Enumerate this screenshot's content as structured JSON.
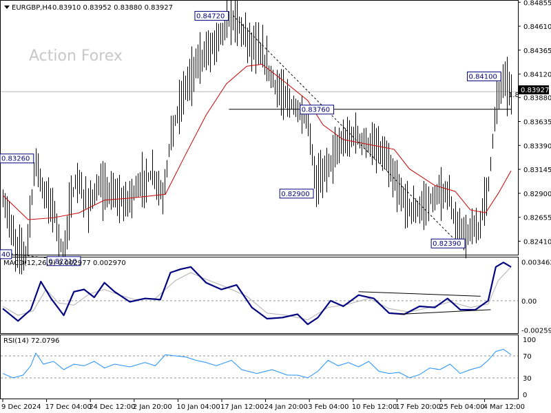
{
  "header": {
    "symbol": "EURGBP,H4",
    "ohlc": "0.83910 0.83952 0.83880 0.83927",
    "watermark": "Action Forex"
  },
  "colors": {
    "candle": "#000000",
    "ma": "#cc0000",
    "macd_main": "#000080",
    "macd_signal": "#b0b0b0",
    "rsi": "#1e90ff",
    "price_box": "#000000"
  },
  "chart_data": [
    {
      "type": "candlestick",
      "pane": "price",
      "ylim": [
        0.823,
        0.8485
      ],
      "y_ticks": [
        "0.84855",
        "0.84610",
        "0.84365",
        "0.84120",
        "0.83880",
        "0.83635",
        "0.83390",
        "0.83145",
        "0.82900",
        "0.82655",
        "0.82410"
      ],
      "current_price": "0.83927",
      "current_price_partial": "1.8",
      "x_ticks": [
        "9 Dec 2024",
        "17 Dec 04:00",
        "24 Dec 12:00",
        "2 Jan 20:00",
        "10 Jan 04:00",
        "17 Jan 12:00",
        "24 Jan 20:00",
        "3 Feb 04:00",
        "10 Feb 12:00",
        "17 Feb 20:00",
        "25 Feb 04:00",
        "4 Mar 12:00"
      ],
      "annotations": [
        "0.84720",
        "0.83260",
        "0.82210",
        "0.82900",
        "0.83760",
        "0.82390",
        "0.84100",
        "40"
      ],
      "horizontal_lines": [
        0.8394,
        0.8376
      ],
      "trendlines": [
        {
          "from": {
            "x": 0.0,
            "y": 0.8229
          },
          "to": {
            "x": 0.135,
            "y": 0.8221
          }
        },
        {
          "from": {
            "x": 0.453,
            "y": 0.8472
          },
          "to": {
            "x": 0.896,
            "y": 0.8239
          }
        }
      ],
      "price_path": [
        {
          "x": 0.0,
          "y": 0.8282
        },
        {
          "x": 0.01,
          "y": 0.8268
        },
        {
          "x": 0.025,
          "y": 0.8235
        },
        {
          "x": 0.045,
          "y": 0.8228
        },
        {
          "x": 0.065,
          "y": 0.8326
        },
        {
          "x": 0.08,
          "y": 0.829
        },
        {
          "x": 0.1,
          "y": 0.8275
        },
        {
          "x": 0.118,
          "y": 0.8225
        },
        {
          "x": 0.13,
          "y": 0.827
        },
        {
          "x": 0.145,
          "y": 0.8305
        },
        {
          "x": 0.165,
          "y": 0.828
        },
        {
          "x": 0.19,
          "y": 0.8295
        },
        {
          "x": 0.215,
          "y": 0.829
        },
        {
          "x": 0.24,
          "y": 0.828
        },
        {
          "x": 0.27,
          "y": 0.83
        },
        {
          "x": 0.295,
          "y": 0.831
        },
        {
          "x": 0.315,
          "y": 0.8285
        },
        {
          "x": 0.33,
          "y": 0.835
        },
        {
          "x": 0.36,
          "y": 0.84
        },
        {
          "x": 0.385,
          "y": 0.8425
        },
        {
          "x": 0.41,
          "y": 0.844
        },
        {
          "x": 0.435,
          "y": 0.846
        },
        {
          "x": 0.455,
          "y": 0.847
        },
        {
          "x": 0.48,
          "y": 0.845
        },
        {
          "x": 0.51,
          "y": 0.843
        },
        {
          "x": 0.54,
          "y": 0.8395
        },
        {
          "x": 0.57,
          "y": 0.838
        },
        {
          "x": 0.6,
          "y": 0.8362
        },
        {
          "x": 0.615,
          "y": 0.83
        },
        {
          "x": 0.64,
          "y": 0.832
        },
        {
          "x": 0.665,
          "y": 0.834
        },
        {
          "x": 0.69,
          "y": 0.835
        },
        {
          "x": 0.72,
          "y": 0.834
        },
        {
          "x": 0.75,
          "y": 0.833
        },
        {
          "x": 0.78,
          "y": 0.829
        },
        {
          "x": 0.81,
          "y": 0.827
        },
        {
          "x": 0.845,
          "y": 0.8285
        },
        {
          "x": 0.875,
          "y": 0.829
        },
        {
          "x": 0.89,
          "y": 0.8258
        },
        {
          "x": 0.91,
          "y": 0.8247
        },
        {
          "x": 0.935,
          "y": 0.8255
        },
        {
          "x": 0.955,
          "y": 0.83
        },
        {
          "x": 0.97,
          "y": 0.838
        },
        {
          "x": 0.985,
          "y": 0.841
        },
        {
          "x": 1.0,
          "y": 0.8392
        }
      ],
      "ma_path": [
        {
          "x": 0.0,
          "y": 0.8288
        },
        {
          "x": 0.05,
          "y": 0.8263
        },
        {
          "x": 0.1,
          "y": 0.8265
        },
        {
          "x": 0.15,
          "y": 0.827
        },
        {
          "x": 0.2,
          "y": 0.8283
        },
        {
          "x": 0.25,
          "y": 0.8285
        },
        {
          "x": 0.32,
          "y": 0.8289
        },
        {
          "x": 0.36,
          "y": 0.833
        },
        {
          "x": 0.4,
          "y": 0.837
        },
        {
          "x": 0.44,
          "y": 0.8402
        },
        {
          "x": 0.48,
          "y": 0.842
        },
        {
          "x": 0.51,
          "y": 0.8422
        },
        {
          "x": 0.55,
          "y": 0.8406
        },
        {
          "x": 0.6,
          "y": 0.8385
        },
        {
          "x": 0.63,
          "y": 0.836
        },
        {
          "x": 0.67,
          "y": 0.8345
        },
        {
          "x": 0.72,
          "y": 0.834
        },
        {
          "x": 0.77,
          "y": 0.8335
        },
        {
          "x": 0.8,
          "y": 0.8315
        },
        {
          "x": 0.85,
          "y": 0.8298
        },
        {
          "x": 0.89,
          "y": 0.8292
        },
        {
          "x": 0.92,
          "y": 0.8273
        },
        {
          "x": 0.95,
          "y": 0.827
        },
        {
          "x": 0.975,
          "y": 0.829
        },
        {
          "x": 1.0,
          "y": 0.8313
        }
      ]
    },
    {
      "type": "line",
      "pane": "macd",
      "title": "MACD(12,26,9) 0.002977 0.002970",
      "ylim": [
        -0.0027,
        0.0036
      ],
      "y_ticks": [
        "0.003462",
        "0.00",
        "-0.002593"
      ],
      "series": [
        {
          "name": "main",
          "points": [
            {
              "x": 0.0,
              "y": -0.0007
            },
            {
              "x": 0.03,
              "y": -0.0018
            },
            {
              "x": 0.055,
              "y": -0.0008
            },
            {
              "x": 0.075,
              "y": 0.0017
            },
            {
              "x": 0.095,
              "y": 0.0002
            },
            {
              "x": 0.12,
              "y": -0.0013
            },
            {
              "x": 0.14,
              "y": 0.0008
            },
            {
              "x": 0.16,
              "y": 0.001
            },
            {
              "x": 0.18,
              "y": 0.0003
            },
            {
              "x": 0.2,
              "y": 0.0016
            },
            {
              "x": 0.22,
              "y": 0.0008
            },
            {
              "x": 0.25,
              "y": -0.0001
            },
            {
              "x": 0.28,
              "y": 0.0002
            },
            {
              "x": 0.31,
              "y": 0.0001
            },
            {
              "x": 0.33,
              "y": 0.0025
            },
            {
              "x": 0.35,
              "y": 0.0028
            },
            {
              "x": 0.37,
              "y": 0.003
            },
            {
              "x": 0.4,
              "y": 0.0016
            },
            {
              "x": 0.43,
              "y": 0.001
            },
            {
              "x": 0.46,
              "y": 0.0014
            },
            {
              "x": 0.49,
              "y": -0.0006
            },
            {
              "x": 0.52,
              "y": -0.0016
            },
            {
              "x": 0.55,
              "y": -0.0015
            },
            {
              "x": 0.58,
              "y": -0.0012
            },
            {
              "x": 0.6,
              "y": -0.0021
            },
            {
              "x": 0.62,
              "y": -0.0015
            },
            {
              "x": 0.645,
              "y": 0.0
            },
            {
              "x": 0.67,
              "y": -0.0005
            },
            {
              "x": 0.7,
              "y": 0.0005
            },
            {
              "x": 0.73,
              "y": 0.0002
            },
            {
              "x": 0.76,
              "y": -0.0011
            },
            {
              "x": 0.79,
              "y": -0.0012
            },
            {
              "x": 0.82,
              "y": -0.0005
            },
            {
              "x": 0.85,
              "y": -0.0006
            },
            {
              "x": 0.875,
              "y": 0.0002
            },
            {
              "x": 0.9,
              "y": -0.0008
            },
            {
              "x": 0.93,
              "y": -0.0008
            },
            {
              "x": 0.955,
              "y": 0.0
            },
            {
              "x": 0.97,
              "y": 0.003
            },
            {
              "x": 0.985,
              "y": 0.0034
            },
            {
              "x": 1.0,
              "y": 0.003
            }
          ]
        },
        {
          "name": "signal",
          "points": [
            {
              "x": 0.0,
              "y": -0.0005
            },
            {
              "x": 0.03,
              "y": -0.0013
            },
            {
              "x": 0.06,
              "y": -0.0009
            },
            {
              "x": 0.085,
              "y": 0.001
            },
            {
              "x": 0.11,
              "y": -0.0002
            },
            {
              "x": 0.14,
              "y": -0.0004
            },
            {
              "x": 0.17,
              "y": 0.0006
            },
            {
              "x": 0.2,
              "y": 0.001
            },
            {
              "x": 0.23,
              "y": 0.0005
            },
            {
              "x": 0.26,
              "y": 0.0001
            },
            {
              "x": 0.3,
              "y": 0.0002
            },
            {
              "x": 0.34,
              "y": 0.0018
            },
            {
              "x": 0.37,
              "y": 0.0025
            },
            {
              "x": 0.4,
              "y": 0.0019
            },
            {
              "x": 0.44,
              "y": 0.0012
            },
            {
              "x": 0.48,
              "y": 0.0004
            },
            {
              "x": 0.52,
              "y": -0.0011
            },
            {
              "x": 0.56,
              "y": -0.0013
            },
            {
              "x": 0.6,
              "y": -0.0017
            },
            {
              "x": 0.64,
              "y": -0.0006
            },
            {
              "x": 0.68,
              "y": -0.0003
            },
            {
              "x": 0.72,
              "y": 0.0002
            },
            {
              "x": 0.76,
              "y": -0.0007
            },
            {
              "x": 0.8,
              "y": -0.001
            },
            {
              "x": 0.84,
              "y": -0.0006
            },
            {
              "x": 0.88,
              "y": -0.0001
            },
            {
              "x": 0.92,
              "y": -0.0006
            },
            {
              "x": 0.955,
              "y": -0.0003
            },
            {
              "x": 0.975,
              "y": 0.0018
            },
            {
              "x": 1.0,
              "y": 0.003
            }
          ]
        }
      ],
      "trendlines": [
        {
          "from": {
            "x": 0.7,
            "y": 0.0008
          },
          "to": {
            "x": 0.94,
            "y": 0.0004
          }
        },
        {
          "from": {
            "x": 0.78,
            "y": -0.0012
          },
          "to": {
            "x": 0.96,
            "y": -0.0008
          }
        }
      ]
    },
    {
      "type": "line",
      "pane": "rsi",
      "title": "RSI(14) 72.0796",
      "ylim": [
        0,
        100
      ],
      "y_ticks": [
        "100",
        "70",
        "30",
        "0"
      ],
      "levels": [
        70,
        30
      ],
      "series": [
        {
          "name": "RSI(14)",
          "points": [
            {
              "x": 0.0,
              "y": 38
            },
            {
              "x": 0.02,
              "y": 30
            },
            {
              "x": 0.04,
              "y": 35
            },
            {
              "x": 0.055,
              "y": 52
            },
            {
              "x": 0.065,
              "y": 75
            },
            {
              "x": 0.08,
              "y": 55
            },
            {
              "x": 0.1,
              "y": 60
            },
            {
              "x": 0.12,
              "y": 45
            },
            {
              "x": 0.14,
              "y": 55
            },
            {
              "x": 0.16,
              "y": 52
            },
            {
              "x": 0.18,
              "y": 60
            },
            {
              "x": 0.2,
              "y": 48
            },
            {
              "x": 0.22,
              "y": 55
            },
            {
              "x": 0.25,
              "y": 50
            },
            {
              "x": 0.28,
              "y": 58
            },
            {
              "x": 0.3,
              "y": 52
            },
            {
              "x": 0.32,
              "y": 72
            },
            {
              "x": 0.34,
              "y": 70
            },
            {
              "x": 0.36,
              "y": 68
            },
            {
              "x": 0.38,
              "y": 62
            },
            {
              "x": 0.4,
              "y": 58
            },
            {
              "x": 0.42,
              "y": 52
            },
            {
              "x": 0.45,
              "y": 62
            },
            {
              "x": 0.47,
              "y": 45
            },
            {
              "x": 0.5,
              "y": 38
            },
            {
              "x": 0.53,
              "y": 45
            },
            {
              "x": 0.56,
              "y": 35
            },
            {
              "x": 0.58,
              "y": 35
            },
            {
              "x": 0.6,
              "y": 30
            },
            {
              "x": 0.62,
              "y": 42
            },
            {
              "x": 0.64,
              "y": 62
            },
            {
              "x": 0.66,
              "y": 52
            },
            {
              "x": 0.68,
              "y": 58
            },
            {
              "x": 0.7,
              "y": 50
            },
            {
              "x": 0.72,
              "y": 60
            },
            {
              "x": 0.74,
              "y": 42
            },
            {
              "x": 0.76,
              "y": 38
            },
            {
              "x": 0.78,
              "y": 40
            },
            {
              "x": 0.8,
              "y": 30
            },
            {
              "x": 0.82,
              "y": 36
            },
            {
              "x": 0.84,
              "y": 48
            },
            {
              "x": 0.86,
              "y": 45
            },
            {
              "x": 0.88,
              "y": 55
            },
            {
              "x": 0.9,
              "y": 38
            },
            {
              "x": 0.92,
              "y": 45
            },
            {
              "x": 0.94,
              "y": 50
            },
            {
              "x": 0.955,
              "y": 62
            },
            {
              "x": 0.97,
              "y": 78
            },
            {
              "x": 0.985,
              "y": 82
            },
            {
              "x": 1.0,
              "y": 72
            }
          ]
        }
      ]
    }
  ]
}
